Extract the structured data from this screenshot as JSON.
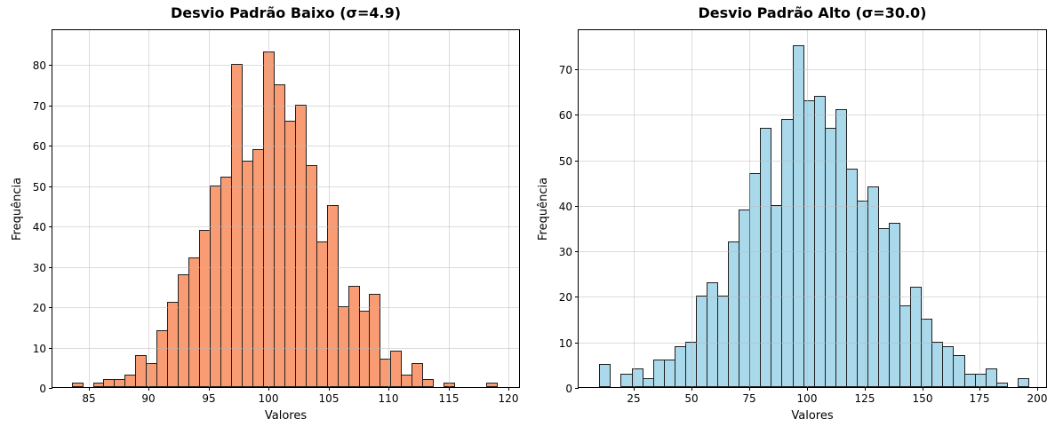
{
  "figure": {
    "background": "#ffffff",
    "kind": "matplotlib-style dual histogram figure"
  },
  "chart_data": [
    {
      "type": "bar",
      "subtype": "histogram",
      "title": "Desvio Padrão Baixo (σ=4.9)",
      "xlabel": "Valores",
      "ylabel": "Frequência",
      "bin_start": 83.6,
      "bin_width": 0.885,
      "counts": [
        1,
        0,
        1,
        2,
        2,
        3,
        8,
        6,
        14,
        21,
        28,
        32,
        39,
        50,
        52,
        80,
        56,
        59,
        83,
        75,
        66,
        70,
        55,
        36,
        45,
        20,
        25,
        19,
        23,
        7,
        9,
        3,
        6,
        2,
        0,
        1,
        0,
        0,
        0,
        1
      ],
      "xlim": [
        82.0,
        121.0
      ],
      "ylim": [
        0,
        88.8
      ],
      "xticks": [
        85,
        90,
        95,
        100,
        105,
        110,
        115,
        120
      ],
      "yticks": [
        0,
        10,
        20,
        30,
        40,
        50,
        60,
        70,
        80
      ],
      "bar_color": "#F99C73",
      "bar_edge_color": "#1f1f1f",
      "grid": true,
      "legend": "none"
    },
    {
      "type": "bar",
      "subtype": "histogram",
      "title": "Desvio Padrão Alto (σ=30.0)",
      "xlabel": "Valores",
      "ylabel": "Frequência",
      "bin_start": 10.0,
      "bin_width": 4.65,
      "counts": [
        5,
        0,
        3,
        4,
        2,
        6,
        6,
        9,
        10,
        20,
        23,
        20,
        32,
        39,
        47,
        57,
        40,
        59,
        75,
        63,
        64,
        57,
        61,
        48,
        41,
        44,
        35,
        36,
        18,
        22,
        15,
        10,
        9,
        7,
        3,
        3,
        4,
        1,
        0,
        2
      ],
      "xlim": [
        1.0,
        204.5
      ],
      "ylim": [
        0,
        78.8
      ],
      "xticks": [
        25,
        50,
        75,
        100,
        125,
        150,
        175,
        200
      ],
      "yticks": [
        0,
        10,
        20,
        30,
        40,
        50,
        60,
        70
      ],
      "bar_color": "#A9D9EA",
      "bar_edge_color": "#1f1f1f",
      "grid": true,
      "legend": "none"
    }
  ]
}
